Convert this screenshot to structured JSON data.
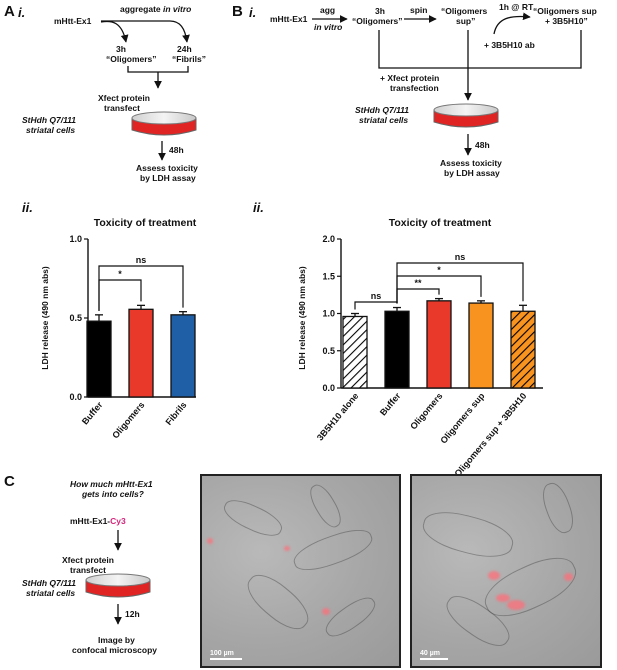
{
  "panelA": {
    "letter": "A",
    "sub_i": "i.",
    "sub_ii": "ii.",
    "source": "mHtt-Ex1",
    "aggregate_prefix": "aggregate ",
    "aggregate_italic": "in vitro",
    "time1": "3h",
    "label1": "“Oligomers”",
    "time2": "24h",
    "label2": "“Fibrils”",
    "transfect1": "Xfect protein",
    "transfect2": "transfect",
    "cells1": "StHdh Q7/111",
    "cells2": "striatal cells",
    "incubation": "48h",
    "assay1": "Assess toxicity",
    "assay2": "by LDH assay"
  },
  "panelB": {
    "letter": "B",
    "sub_i": "i.",
    "sub_ii": "ii.",
    "source": "mHtt-Ex1",
    "agg": "agg",
    "agg_italic": "in vitro",
    "time": "3h",
    "label_oligomers": "“Oligomers”",
    "spin": "spin",
    "label_sup1": "“Oligomers",
    "label_sup2": "sup”",
    "rt": "1h @ RT",
    "antibody": "+ 3B5H10 ab",
    "label_final1": "“Oligomers sup",
    "label_final2": "+ 3B5H10”",
    "transfect1": "+ Xfect protein",
    "transfect2": "transfection",
    "cells1": "StHdh Q7/111",
    "cells2": "striatal cells",
    "incubation": "48h",
    "assay1": "Assess toxicity",
    "assay2": "by LDH assay"
  },
  "panelC": {
    "letter": "C",
    "question1": "How much mHtt-Ex1",
    "question2": "gets into cells?",
    "probe_prefix": "mHtt-Ex1-",
    "probe_dye": "Cy3",
    "transfect1": "Xfect protein",
    "transfect2": "transfect",
    "cells1": "StHdh Q7/111",
    "cells2": "striatal cells",
    "incubation": "12h",
    "image1": "Image by",
    "image2": "confocal microscopy",
    "scale1": "100 µm",
    "scale2": "40 µm"
  },
  "colors": {
    "buffer": "#000000",
    "oligomers": "#e8392a",
    "fibrils": "#1f5fa6",
    "oligomers_sup": "#f7931e",
    "cy3": "#d6247b",
    "dish_red": "#e02424"
  },
  "chart_data": [
    {
      "type": "bar",
      "title": "Toxicity of treatment",
      "ylabel": "LDH release (490 nm abs)",
      "ylim": [
        0,
        1.0
      ],
      "yticks": [
        "0.0",
        "0.5",
        "1.0"
      ],
      "categories": [
        "Buffer",
        "Oligomers",
        "Fibrils"
      ],
      "values": [
        0.48,
        0.555,
        0.52
      ],
      "errors": [
        0.04,
        0.025,
        0.02
      ],
      "fills": [
        "#000000",
        "#e8392a",
        "#1f5fa6"
      ],
      "hatched": [
        false,
        false,
        false
      ],
      "significance": [
        {
          "from": 0,
          "to": 1,
          "label": "*"
        },
        {
          "from": 0,
          "to": 2,
          "label": "ns"
        }
      ]
    },
    {
      "type": "bar",
      "title": "Toxicity of treatment",
      "ylabel": "LDH release (490 nm abs)",
      "ylim": [
        0,
        2.0
      ],
      "yticks": [
        "0.0",
        "0.5",
        "1.0",
        "1.5",
        "2.0"
      ],
      "categories": [
        "3B5H10 alone",
        "Buffer",
        "Oligomers",
        "Oligomers sup",
        "Oligomers sup + 3B5H10"
      ],
      "values": [
        0.96,
        1.03,
        1.17,
        1.14,
        1.03
      ],
      "errors": [
        0.04,
        0.05,
        0.03,
        0.03,
        0.08
      ],
      "fills": [
        "#ffffff",
        "#000000",
        "#e8392a",
        "#f7931e",
        "#f7931e"
      ],
      "hatched": [
        true,
        false,
        false,
        false,
        true
      ],
      "significance": [
        {
          "from": 0,
          "to": 1,
          "label": "ns"
        },
        {
          "from": 1,
          "to": 2,
          "label": "**"
        },
        {
          "from": 1,
          "to": 3,
          "label": "*"
        },
        {
          "from": 1,
          "to": 4,
          "label": "ns"
        }
      ]
    }
  ]
}
